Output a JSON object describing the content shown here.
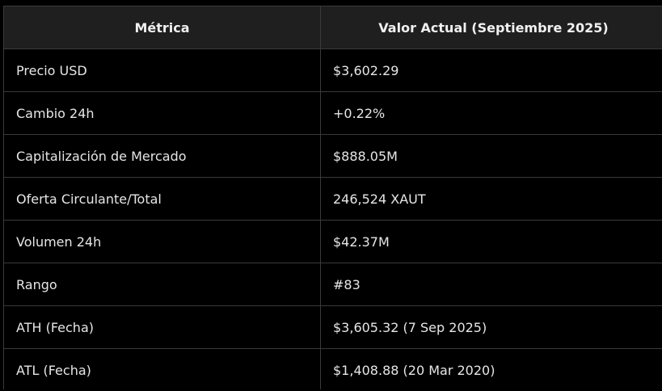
{
  "table": {
    "headers": [
      "Métrica",
      "Valor Actual (Septiembre 2025)"
    ],
    "rows": [
      {
        "metric": "Precio USD",
        "value": "$3,602.29"
      },
      {
        "metric": "Cambio 24h",
        "value": "+0.22%"
      },
      {
        "metric": "Capitalización de Mercado",
        "value": "$888.05M"
      },
      {
        "metric": "Oferta Circulante/Total",
        "value": "246,524 XAUT"
      },
      {
        "metric": "Volumen 24h",
        "value": "$42.37M"
      },
      {
        "metric": "Rango",
        "value": "#83"
      },
      {
        "metric": "ATH (Fecha)",
        "value": "$3,605.32 (7 Sep 2025)"
      },
      {
        "metric": "ATL (Fecha)",
        "value": "$1,408.88 (20 Mar 2020)"
      }
    ]
  },
  "colors": {
    "background": "#000000",
    "header_background": "#1f1f1f",
    "border": "#3a3a3a",
    "text": "#e6e6e6"
  }
}
